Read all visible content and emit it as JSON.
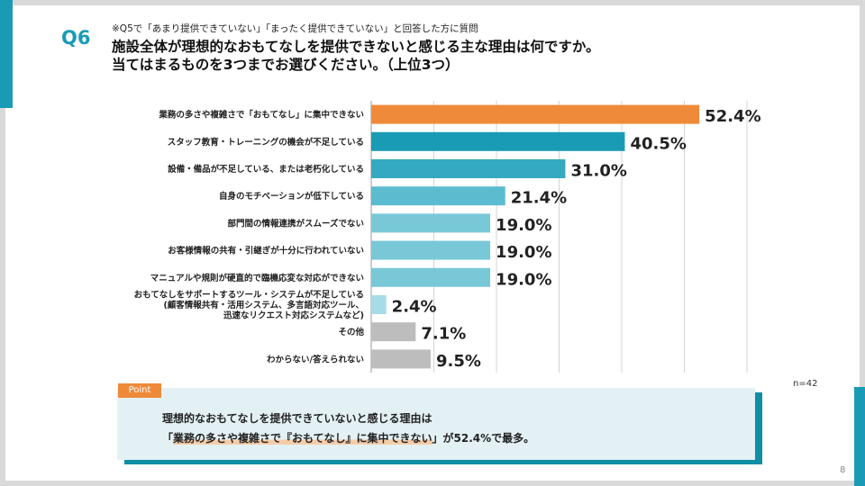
{
  "header": {
    "qnum": "Q6",
    "pre": "※Q5で「あまり提供できていない」「まったく提供できていない」と回答した方に質問",
    "title_line1": "施設全体が理想的なおもてなしを提供できないと感じる主な理由は何ですか。",
    "title_line2": "当てはまるものを3つまでお選びください。（上位3つ）"
  },
  "n_label": "n=42",
  "point": {
    "tag": "Point",
    "line1": "理想的なおもてなしを提供できていないと感じる理由は",
    "line2_pre": "「",
    "line2_hl": "業務の多さや複雑さで『おもてなし』に集中できない",
    "line2_post": "」が52.4%で最多。"
  },
  "page_number": "8",
  "colors": {
    "accent": "#1a9bb5",
    "orange": "#ef8a3a",
    "gray": "#bdbdbd"
  },
  "chart_data": {
    "type": "bar",
    "orientation": "horizontal",
    "xlim": [
      0,
      60
    ],
    "grid": true,
    "categories": [
      "業務の多さや複雑さで「おもてなし」に集中できない",
      "スタッフ教育・トレーニングの機会が不足している",
      "設備・備品が不足している、または老朽化している",
      "自身のモチベーションが低下している",
      "部門間の情報連携がスムーズでない",
      "お客様情報の共有・引継ぎが十分に行われていない",
      "マニュアルや規則が硬直的で臨機応変な対応ができない",
      [
        "おもてなしをサポートするツール・システムが不足している",
        "(顧客情報共有・活用システム、多言語対応ツール、",
        "迅速なリクエスト対応システムなど)"
      ],
      "その他",
      "わからない/答えられない"
    ],
    "values": [
      52.4,
      40.5,
      31.0,
      21.4,
      19.0,
      19.0,
      19.0,
      2.4,
      7.1,
      9.5
    ],
    "value_labels": [
      "52.4%",
      "40.5%",
      "31.0%",
      "21.4%",
      "19.0%",
      "19.0%",
      "19.0%",
      "2.4%",
      "7.1%",
      "9.5%"
    ],
    "bar_colors": [
      "#ef8a3a",
      "#1a9bb5",
      "#35a9bf",
      "#5bbcd0",
      "#79c8d8",
      "#79c8d8",
      "#79c8d8",
      "#a6dce7",
      "#bdbdbd",
      "#bdbdbd"
    ]
  }
}
